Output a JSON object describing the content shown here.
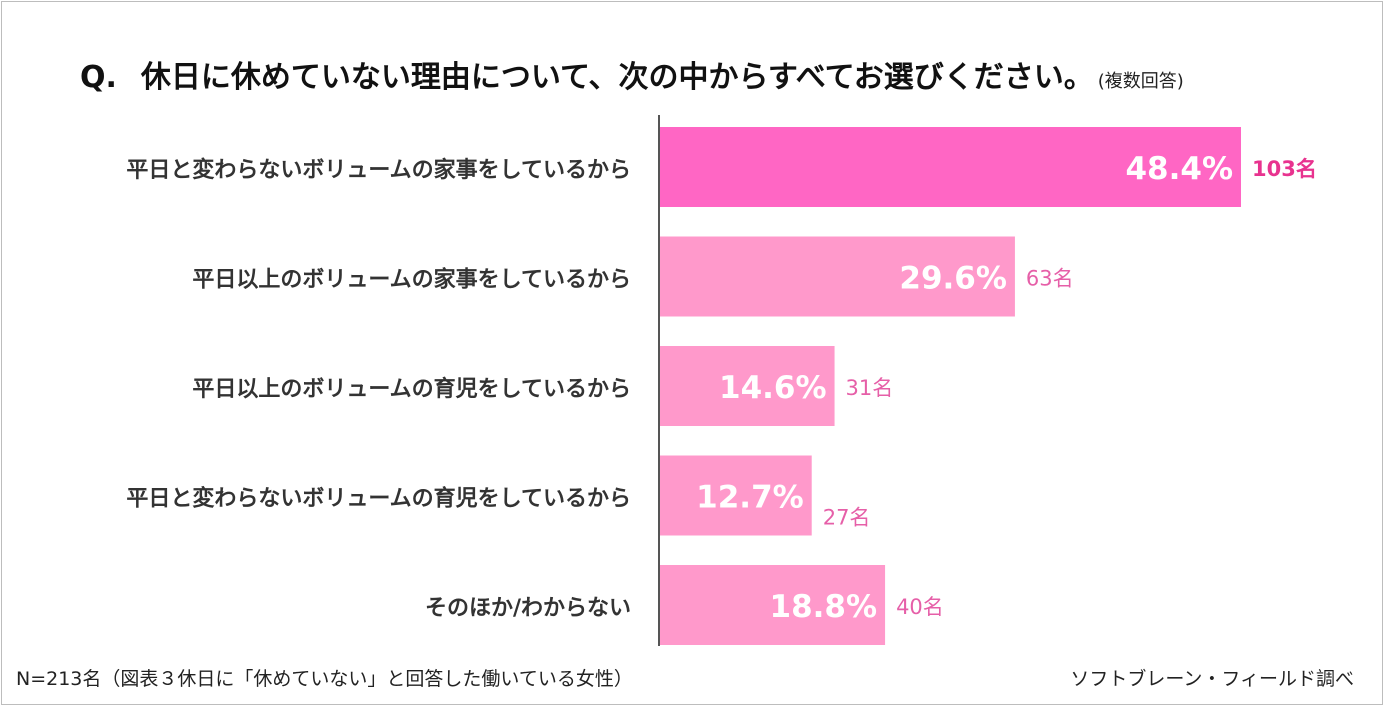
{
  "question": {
    "mark": "Q.",
    "text": "休日に休めていない理由について、次の中からすべてお選びください。",
    "note": "(複数回答)"
  },
  "chart_data": {
    "type": "bar",
    "orientation": "horizontal",
    "categories": [
      "平日と変わらないボリュームの家事をしているから",
      "平日以上のボリュームの家事をしているから",
      "平日以上のボリュームの育児をしているから",
      "平日と変わらないボリュームの育児をしているから",
      "そのほか/わからない"
    ],
    "values": [
      48.4,
      29.6,
      14.6,
      12.7,
      18.8
    ],
    "value_labels": [
      "48.4%",
      "29.6%",
      "14.6%",
      "12.7%",
      "18.8%"
    ],
    "counts": [
      "103名",
      "63名",
      "31名",
      "27名",
      "40名"
    ],
    "highlight_index": 0,
    "colors": {
      "highlight_bar": "#ff66c4",
      "bar": "#ff99cb",
      "highlight_count": "#e8338f",
      "count": "#e65fa8",
      "value_label": "#ffffff",
      "axis": "#555555",
      "category_text": "#333333"
    },
    "xlim": [
      0,
      48.4
    ]
  },
  "footer": {
    "note": "N=213名（図表３休日に「休めていない」と回答した働いている女性）",
    "source": "ソフトブレーン・フィールド調べ"
  }
}
